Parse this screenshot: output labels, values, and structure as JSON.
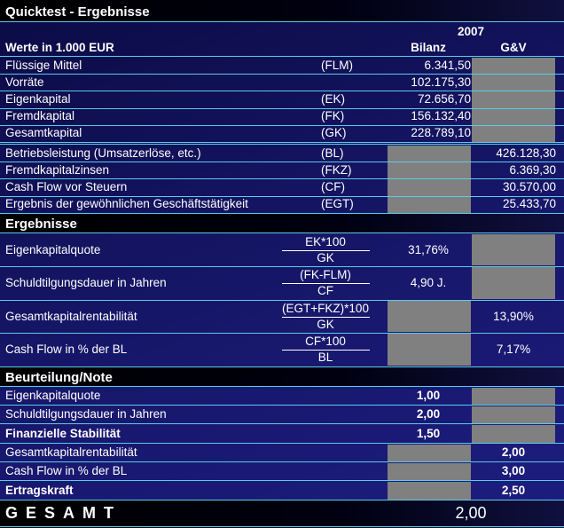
{
  "title": "Quicktest - Ergebnisse",
  "year": "2007",
  "unit_label": "Werte in 1.000 EUR",
  "columns": [
    "Bilanz",
    "G&V"
  ],
  "balance_rows": [
    {
      "label": "Flüssige Mittel",
      "abbr": "(FLM)",
      "bilanz": "6.341,50",
      "guv": null
    },
    {
      "label": "Vorräte",
      "abbr": null,
      "bilanz": "102.175,30",
      "guv": null
    },
    {
      "label": "Eigenkapital",
      "abbr": "(EK)",
      "bilanz": "72.656,70",
      "guv": null
    },
    {
      "label": "Fremdkapital",
      "abbr": "(FK)",
      "bilanz": "156.132,40",
      "guv": null
    },
    {
      "label": "Gesamtkapital",
      "abbr": "(GK)",
      "bilanz": "228.789,10",
      "guv": null
    }
  ],
  "income_rows": [
    {
      "label": "Betriebsleistung (Umsatzerlöse, etc.)",
      "abbr": "(BL)",
      "bilanz": null,
      "guv": "426.128,30"
    },
    {
      "label": "Fremdkapitalzinsen",
      "abbr": "(FKZ)",
      "bilanz": null,
      "guv": "6.369,30"
    },
    {
      "label": "Cash Flow vor Steuern",
      "abbr": "(CF)",
      "bilanz": null,
      "guv": "30.570,00"
    },
    {
      "label": "Ergebnis der gewöhnlichen Geschäftstätigkeit",
      "abbr": "(EGT)",
      "bilanz": null,
      "guv": "25.433,70"
    }
  ],
  "results": {
    "title": "Ergebnisse",
    "rows": [
      {
        "label": "Eigenkapitalquote",
        "numerator": "EK*100",
        "denominator": "GK",
        "bilanz": "31,76%",
        "guv": null
      },
      {
        "label": "Schuldtilgungsdauer in Jahren",
        "numerator": "(FK-FLM)",
        "denominator": "CF",
        "bilanz": "4,90 J.",
        "guv": null
      },
      {
        "label": "Gesamtkapitalrentabilität",
        "numerator": "(EGT+FKZ)*100",
        "denominator": "GK",
        "bilanz": null,
        "guv": "13,90%"
      },
      {
        "label": "Cash Flow in % der BL",
        "numerator": "CF*100",
        "denominator": "BL",
        "bilanz": null,
        "guv": "7,17%"
      }
    ]
  },
  "rating": {
    "title": "Beurteilung/Note",
    "groups": [
      {
        "rows": [
          {
            "label": "Eigenkapitalquote",
            "bilanz": "1,00",
            "guv": null
          },
          {
            "label": "Schuldtilgungsdauer in Jahren",
            "bilanz": "2,00",
            "guv": null
          }
        ],
        "summary": {
          "label": "Finanzielle Stabilität",
          "bilanz": "1,50",
          "guv": null
        }
      },
      {
        "rows": [
          {
            "label": "Gesamtkapitalrentabilität",
            "bilanz": null,
            "guv": "2,00"
          },
          {
            "label": "Cash Flow in % der BL",
            "bilanz": null,
            "guv": "3,00"
          }
        ],
        "summary": {
          "label": "Ertragskraft",
          "bilanz": null,
          "guv": "2,50"
        }
      }
    ]
  },
  "total": {
    "label": "GESAMT",
    "value": "2,00"
  }
}
